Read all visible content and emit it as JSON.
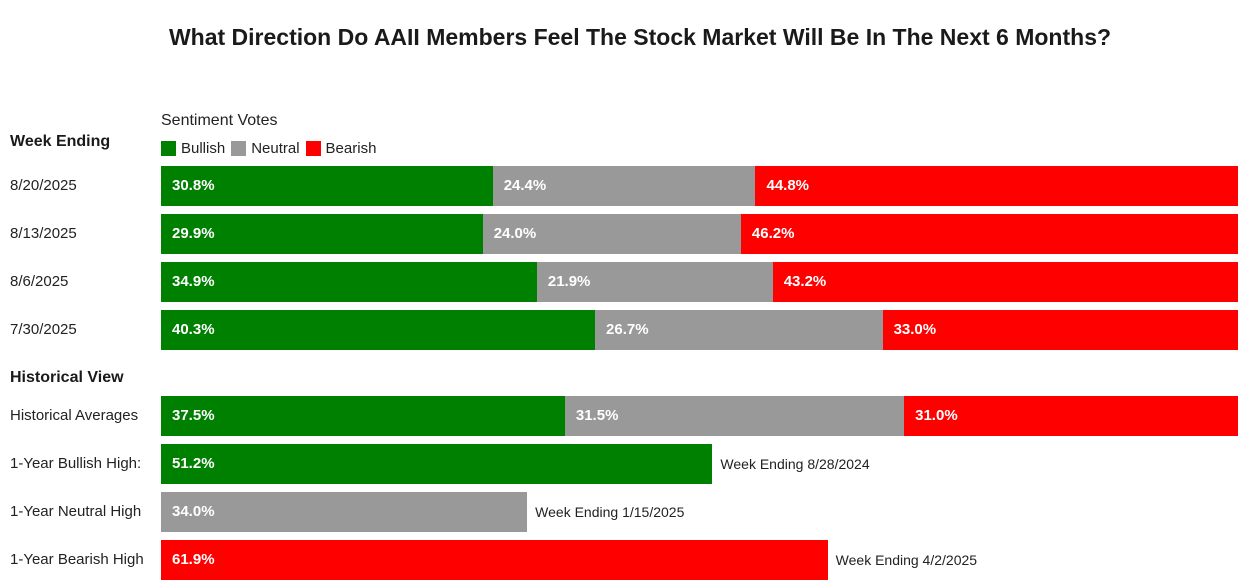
{
  "colors": {
    "bullish": "#008000",
    "neutral": "#999999",
    "bearish": "#ff0000"
  },
  "chart_data": {
    "type": "bar",
    "stacked": true,
    "orientation": "horizontal",
    "title": "What Direction Do AAII Members Feel The Stock Market Will Be In The Next 6 Months?",
    "legend_title": "Sentiment Votes",
    "legend": [
      "Bullish",
      "Neutral",
      "Bearish"
    ],
    "week_header": "Week Ending",
    "weeks": [
      {
        "label": "8/20/2025",
        "bullish": 30.8,
        "neutral": 24.4,
        "bearish": 44.8,
        "bullish_text": "30.8%",
        "neutral_text": "24.4%",
        "bearish_text": "44.8%"
      },
      {
        "label": "8/13/2025",
        "bullish": 29.9,
        "neutral": 24.0,
        "bearish": 46.2,
        "bullish_text": "29.9%",
        "neutral_text": "24.0%",
        "bearish_text": "46.2%"
      },
      {
        "label": "8/6/2025",
        "bullish": 34.9,
        "neutral": 21.9,
        "bearish": 43.2,
        "bullish_text": "34.9%",
        "neutral_text": "21.9%",
        "bearish_text": "43.2%"
      },
      {
        "label": "7/30/2025",
        "bullish": 40.3,
        "neutral": 26.7,
        "bearish": 33.0,
        "bullish_text": "40.3%",
        "neutral_text": "26.7%",
        "bearish_text": "33.0%"
      }
    ],
    "historical_header": "Historical View",
    "historical_average": {
      "label": "Historical Averages",
      "bullish": 37.5,
      "neutral": 31.5,
      "bearish": 31.0,
      "bullish_text": "37.5%",
      "neutral_text": "31.5%",
      "bearish_text": "31.0%"
    },
    "highs": [
      {
        "label": "1-Year Bullish High:",
        "category": "bullish",
        "value": 51.2,
        "value_text": "51.2%",
        "note": "Week Ending 8/28/2024"
      },
      {
        "label": "1-Year Neutral High",
        "category": "neutral",
        "value": 34.0,
        "value_text": "34.0%",
        "note": "Week Ending 1/15/2025"
      },
      {
        "label": "1-Year Bearish High",
        "category": "bearish",
        "value": 61.9,
        "value_text": "61.9%",
        "note": "Week Ending 4/2/2025"
      }
    ],
    "xlim": [
      0,
      100
    ]
  }
}
